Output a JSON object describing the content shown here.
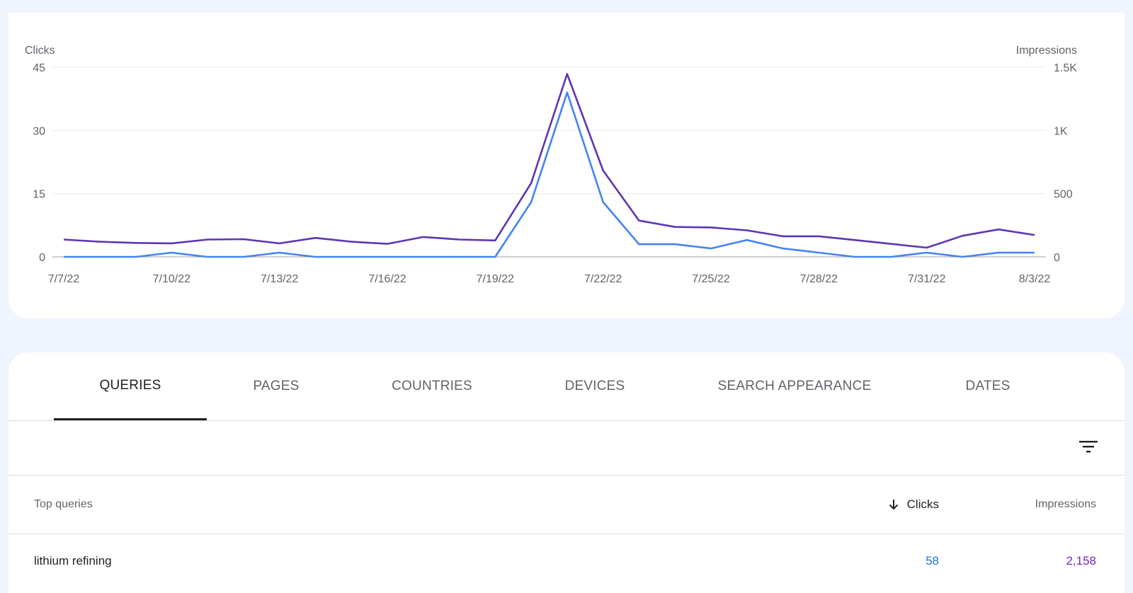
{
  "chart_data": {
    "type": "line",
    "y_left_label": "Clicks",
    "y_right_label": "Impressions",
    "y_left_ticks": [
      "0",
      "15",
      "30",
      "45"
    ],
    "y_right_ticks": [
      "0",
      "500",
      "1K",
      "1.5K"
    ],
    "y_left_range": [
      0,
      45
    ],
    "y_right_range": [
      0,
      1500
    ],
    "x_tick_labels": [
      "7/7/22",
      "7/10/22",
      "7/13/22",
      "7/16/22",
      "7/19/22",
      "7/22/22",
      "7/25/22",
      "7/28/22",
      "7/31/22",
      "8/3/22"
    ],
    "x": [
      "7/7/22",
      "7/8/22",
      "7/9/22",
      "7/10/22",
      "7/11/22",
      "7/12/22",
      "7/13/22",
      "7/14/22",
      "7/15/22",
      "7/16/22",
      "7/17/22",
      "7/18/22",
      "7/19/22",
      "7/20/22",
      "7/21/22",
      "7/22/22",
      "7/23/22",
      "7/24/22",
      "7/25/22",
      "7/26/22",
      "7/27/22",
      "7/28/22",
      "7/29/22",
      "7/30/22",
      "7/31/22",
      "8/1/22",
      "8/2/22",
      "8/3/22"
    ],
    "series": [
      {
        "axis": "left",
        "color": "#4285f4",
        "values": [
          0,
          0,
          0,
          1,
          0,
          0,
          1,
          0,
          0,
          0,
          0,
          0,
          0,
          13,
          39,
          13,
          3,
          3,
          2,
          4,
          2,
          1,
          0,
          0,
          1,
          0,
          1,
          1
        ]
      },
      {
        "axis": "right",
        "color": "#5e35b1",
        "values": [
          137,
          120,
          110,
          107,
          137,
          140,
          107,
          150,
          120,
          103,
          157,
          137,
          130,
          583,
          1447,
          683,
          287,
          237,
          233,
          210,
          163,
          163,
          133,
          103,
          73,
          167,
          217,
          173
        ]
      }
    ],
    "grid": true
  },
  "tabs": [
    "QUERIES",
    "PAGES",
    "COUNTRIES",
    "DEVICES",
    "SEARCH APPEARANCE",
    "DATES"
  ],
  "icons": {
    "filter": "filter-list-icon",
    "sort": "arrow-downward-icon"
  },
  "table": {
    "headers": {
      "query": "Top queries",
      "clicks": "Clicks",
      "impressions": "Impressions"
    },
    "rows": [
      {
        "query": "lithium refining",
        "clicks": "58",
        "impressions": "2,158"
      }
    ]
  },
  "colors": {
    "clicks": "#1a73e8",
    "impressions": "#7627bb"
  }
}
